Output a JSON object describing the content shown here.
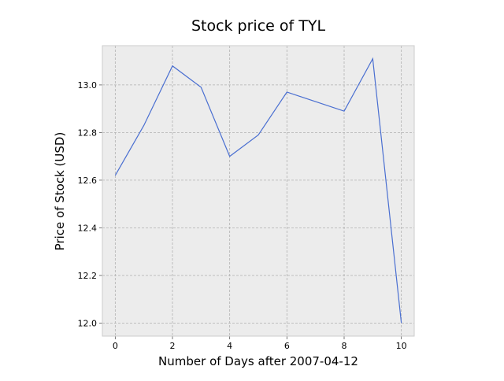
{
  "chart_data": {
    "type": "line",
    "title": "Stock price of TYL",
    "xlabel": "Number of Days after 2007-04-12",
    "ylabel": "Price of Stock (USD)",
    "x": [
      0,
      1,
      2,
      3,
      4,
      5,
      6,
      7,
      8,
      9,
      10
    ],
    "series": [
      {
        "values": [
          12.62,
          12.83,
          13.08,
          12.99,
          12.7,
          12.79,
          12.97,
          12.93,
          12.89,
          13.11,
          12.0
        ]
      }
    ],
    "xlim": [
      -0.45,
      10.45
    ],
    "ylim": [
      11.945,
      13.165
    ],
    "xticks": [
      "0",
      "2",
      "4",
      "6",
      "8",
      "10"
    ],
    "yticks": [
      "12.0",
      "12.2",
      "12.4",
      "12.6",
      "12.8",
      "13.0"
    ],
    "grid": true,
    "line_color": "#4a6fd1",
    "plot_background": "#ececec",
    "grid_color": "#b0b0b0"
  }
}
